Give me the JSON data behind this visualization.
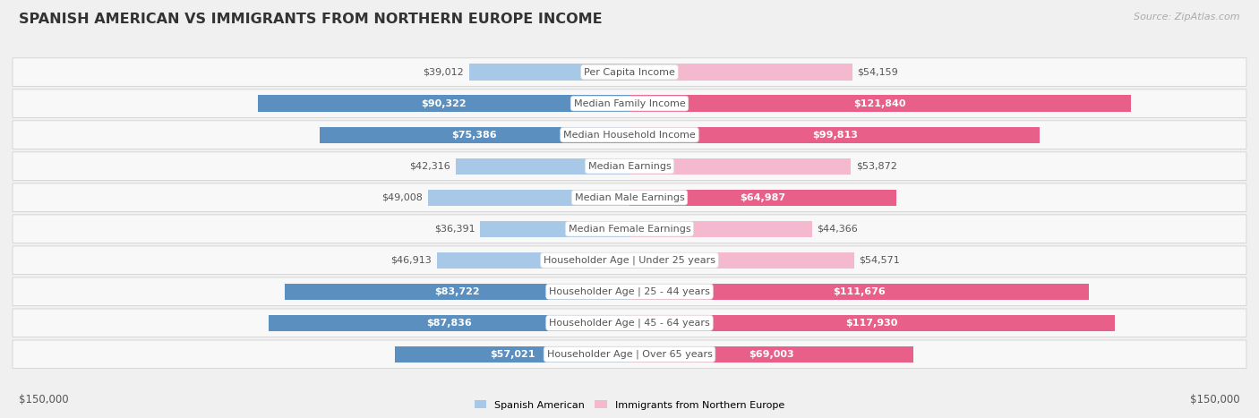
{
  "title": "SPANISH AMERICAN VS IMMIGRANTS FROM NORTHERN EUROPE INCOME",
  "source": "Source: ZipAtlas.com",
  "categories": [
    "Per Capita Income",
    "Median Family Income",
    "Median Household Income",
    "Median Earnings",
    "Median Male Earnings",
    "Median Female Earnings",
    "Householder Age | Under 25 years",
    "Householder Age | 25 - 44 years",
    "Householder Age | 45 - 64 years",
    "Householder Age | Over 65 years"
  ],
  "left_values": [
    39012,
    90322,
    75386,
    42316,
    49008,
    36391,
    46913,
    83722,
    87836,
    57021
  ],
  "right_values": [
    54159,
    121840,
    99813,
    53872,
    64987,
    44366,
    54571,
    111676,
    117930,
    69003
  ],
  "left_labels": [
    "$39,012",
    "$90,322",
    "$75,386",
    "$42,316",
    "$49,008",
    "$36,391",
    "$46,913",
    "$83,722",
    "$87,836",
    "$57,021"
  ],
  "right_labels": [
    "$54,159",
    "$121,840",
    "$99,813",
    "$53,872",
    "$64,987",
    "$44,366",
    "$54,571",
    "$111,676",
    "$117,930",
    "$69,003"
  ],
  "left_color_light": "#a8c8e8",
  "left_color_dark": "#5b8fbf",
  "right_color_light": "#f4b8cf",
  "right_color_dark": "#e8608a",
  "max_value": 150000,
  "x_label_left": "$150,000",
  "x_label_right": "$150,000",
  "legend_left": "Spanish American",
  "legend_right": "Immigrants from Northern Europe",
  "bg_color": "#f0f0f0",
  "row_bg": "#f8f8f8",
  "label_color_dark": "#555555",
  "label_color_white": "#ffffff",
  "title_fontsize": 11.5,
  "source_fontsize": 8,
  "bar_label_fontsize": 8,
  "category_fontsize": 8,
  "axis_label_fontsize": 8.5,
  "inside_label_threshold": 55000
}
